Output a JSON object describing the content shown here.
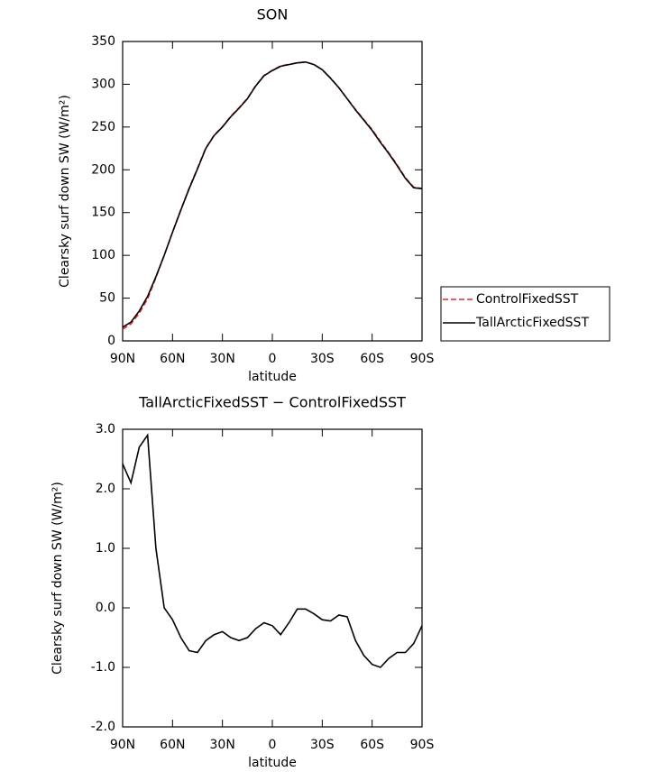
{
  "chart_data": [
    {
      "type": "line",
      "title": "SON",
      "xlabel": "latitude",
      "ylabel": "Clearsky surf down SW (W/m²)",
      "x": [
        90,
        85,
        80,
        75,
        70,
        65,
        60,
        55,
        50,
        45,
        40,
        35,
        30,
        25,
        20,
        15,
        10,
        5,
        0,
        -5,
        -10,
        -15,
        -20,
        -25,
        -30,
        -35,
        -40,
        -45,
        -50,
        -55,
        -60,
        -65,
        -70,
        -75,
        -80,
        -85,
        -90
      ],
      "xlim": [
        90,
        -90
      ],
      "xticks": [
        {
          "value": 90,
          "label": "90N"
        },
        {
          "value": 60,
          "label": "60N"
        },
        {
          "value": 30,
          "label": "30N"
        },
        0,
        {
          "value": -30,
          "label": "30S"
        },
        {
          "value": -60,
          "label": "60S"
        },
        {
          "value": -90,
          "label": "90S"
        }
      ],
      "ylim": [
        0,
        350
      ],
      "yticks": [
        0,
        50,
        100,
        150,
        200,
        250,
        300,
        350
      ],
      "legend": "right",
      "series": [
        {
          "name": "ControlFixedSST",
          "color": "#e8262a",
          "linestyle": "dashed",
          "values": [
            13.6,
            19.9,
            32.3,
            49.1,
            74.0,
            100.0,
            127.2,
            153.5,
            178.7,
            201.8,
            225.6,
            240.5,
            250.4,
            262.5,
            272.6,
            283.5,
            298.4,
            310.3,
            316.3,
            321.5,
            323.3,
            325.0,
            326.0,
            323.1,
            317.2,
            307.2,
            296.1,
            283.2,
            270.6,
            258.8,
            247.0,
            233.0,
            219.9,
            205.8,
            190.8,
            179.6,
            178.3
          ]
        },
        {
          "name": "TallArcticFixedSST",
          "color": "#000000",
          "linestyle": "solid",
          "values": [
            16,
            22,
            35,
            52,
            75,
            100,
            127,
            153,
            178,
            201,
            225,
            240,
            250,
            262,
            272,
            283,
            298,
            310,
            316,
            321,
            323,
            325,
            326,
            323,
            317,
            307,
            296,
            283,
            270,
            258,
            246,
            232,
            219,
            205,
            190,
            179,
            178
          ]
        }
      ]
    },
    {
      "type": "line",
      "title": "TallArcticFixedSST − ControlFixedSST",
      "xlabel": "latitude",
      "ylabel": "Clearsky surf down SW (W/m²)",
      "x": [
        90,
        85,
        80,
        75,
        70,
        65,
        60,
        55,
        50,
        45,
        40,
        35,
        30,
        25,
        20,
        15,
        10,
        5,
        0,
        -5,
        -10,
        -15,
        -20,
        -25,
        -30,
        -35,
        -40,
        -45,
        -50,
        -55,
        -60,
        -65,
        -70,
        -75,
        -80,
        -85,
        -90
      ],
      "xlim": [
        90,
        -90
      ],
      "xticks": [
        {
          "value": 90,
          "label": "90N"
        },
        {
          "value": 60,
          "label": "60N"
        },
        {
          "value": 30,
          "label": "30N"
        },
        0,
        {
          "value": -30,
          "label": "30S"
        },
        {
          "value": -60,
          "label": "60S"
        },
        {
          "value": -90,
          "label": "90S"
        }
      ],
      "ylim": [
        -2,
        3
      ],
      "yticks": [
        {
          "value": -2,
          "label": "-2.0"
        },
        {
          "value": -1,
          "label": "-1.0"
        },
        {
          "value": 0,
          "label": "0.0"
        },
        {
          "value": 1,
          "label": "1.0"
        },
        {
          "value": 2,
          "label": "2.0"
        },
        {
          "value": 3,
          "label": "3.0"
        }
      ],
      "color": "#000000",
      "values": [
        2.42,
        2.1,
        2.7,
        2.9,
        1.0,
        0.0,
        -0.2,
        -0.5,
        -0.72,
        -0.75,
        -0.55,
        -0.45,
        -0.4,
        -0.5,
        -0.55,
        -0.5,
        -0.35,
        -0.25,
        -0.3,
        -0.45,
        -0.25,
        -0.02,
        -0.02,
        -0.1,
        -0.2,
        -0.22,
        -0.12,
        -0.15,
        -0.55,
        -0.8,
        -0.95,
        -1.0,
        -0.85,
        -0.75,
        -0.75,
        -0.6,
        -0.3
      ]
    }
  ]
}
